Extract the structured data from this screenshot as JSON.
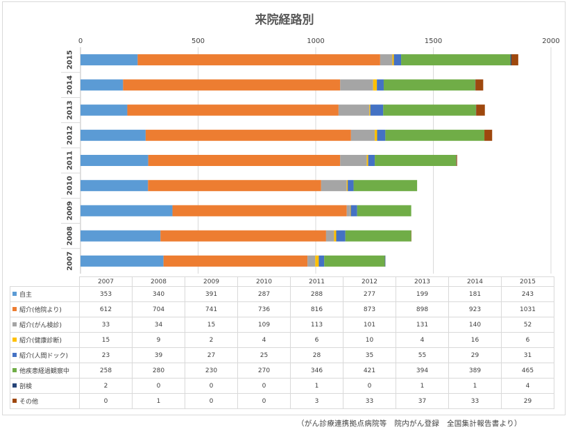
{
  "chart_data": {
    "type": "bar",
    "orientation": "horizontal",
    "stacked": true,
    "title": "来院経路別",
    "xlim": [
      0,
      2000
    ],
    "x_ticks": [
      0,
      500,
      1000,
      1500,
      2000
    ],
    "x_axis_position": "top",
    "grid": true,
    "legend": "data table below chart",
    "categories": [
      "2007",
      "2008",
      "2009",
      "2010",
      "2011",
      "2012",
      "2013",
      "2014",
      "2015"
    ],
    "series": [
      {
        "name": "自主",
        "color": "#5b9bd5",
        "values": [
          353,
          340,
          391,
          287,
          288,
          277,
          199,
          181,
          243
        ]
      },
      {
        "name": "紹介(他院より)",
        "color": "#ed7d31",
        "values": [
          612,
          704,
          741,
          736,
          816,
          873,
          898,
          923,
          1031
        ]
      },
      {
        "name": "紹介(がん検診)",
        "color": "#a5a5a5",
        "values": [
          33,
          34,
          15,
          109,
          113,
          101,
          131,
          140,
          52
        ]
      },
      {
        "name": "紹介(健康診断)",
        "color": "#ffc000",
        "values": [
          15,
          9,
          2,
          4,
          6,
          10,
          4,
          16,
          6
        ]
      },
      {
        "name": "紹介(人間ドック)",
        "color": "#4472c4",
        "values": [
          23,
          39,
          27,
          25,
          28,
          35,
          55,
          29,
          31
        ]
      },
      {
        "name": "他疾患経過観察中",
        "color": "#70ad47",
        "values": [
          258,
          280,
          230,
          270,
          346,
          421,
          394,
          389,
          465
        ]
      },
      {
        "name": "剖検",
        "color": "#264478",
        "values": [
          2,
          0,
          0,
          0,
          1,
          0,
          1,
          1,
          4
        ]
      },
      {
        "name": "その他",
        "color": "#9e480e",
        "values": [
          0,
          1,
          0,
          0,
          3,
          33,
          37,
          33,
          29
        ]
      }
    ]
  },
  "footnote": "（がん診療連携拠点病院等　院内がん登録　全国集計報告書より）"
}
